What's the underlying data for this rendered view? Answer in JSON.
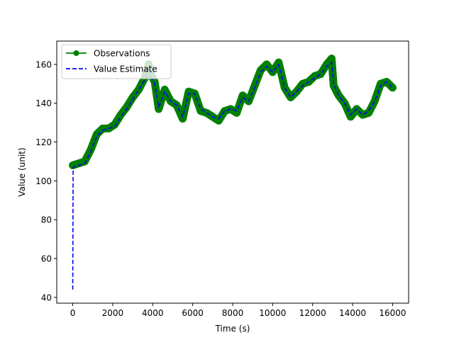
{
  "chart_data": {
    "type": "line",
    "title": "",
    "xlabel": "Time (s)",
    "ylabel": "Value (unit)",
    "xlim": [
      -800,
      16800
    ],
    "ylim": [
      37,
      172
    ],
    "x_ticks": [
      0,
      2000,
      4000,
      6000,
      8000,
      10000,
      12000,
      14000,
      16000
    ],
    "x_tick_labels": [
      "0",
      "2000",
      "4000",
      "6000",
      "8000",
      "10000",
      "12000",
      "14000",
      "16000"
    ],
    "y_ticks": [
      40,
      60,
      80,
      100,
      120,
      140,
      160
    ],
    "y_tick_labels": [
      "40",
      "60",
      "80",
      "100",
      "120",
      "140",
      "160"
    ],
    "grid": false,
    "legend_position": "top-left",
    "series": [
      {
        "name": "Observations",
        "style": "line-with-circle-markers",
        "color": "#008000",
        "x": [
          0,
          300,
          600,
          900,
          1200,
          1500,
          1800,
          2100,
          2400,
          2700,
          3000,
          3300,
          3600,
          3800,
          3900,
          4100,
          4300,
          4600,
          4900,
          5200,
          5500,
          5800,
          6100,
          6400,
          6700,
          7000,
          7300,
          7600,
          7900,
          8200,
          8500,
          8800,
          9100,
          9400,
          9700,
          10000,
          10300,
          10600,
          10900,
          11200,
          11500,
          11800,
          12100,
          12400,
          12700,
          12950,
          13050,
          13300,
          13600,
          13900,
          14200,
          14500,
          14800,
          15100,
          15400,
          15700,
          16000
        ],
        "y": [
          108,
          109,
          110,
          116,
          124,
          127,
          127,
          129,
          134,
          138,
          143,
          147,
          153,
          160,
          155,
          151,
          137,
          147,
          141,
          139,
          132,
          146,
          145,
          136,
          135,
          133,
          131,
          136,
          137,
          135,
          144,
          141,
          149,
          157,
          160,
          156,
          161,
          148,
          143,
          146,
          150,
          151,
          154,
          155,
          160,
          163,
          149,
          144,
          140,
          133,
          137,
          134,
          135,
          141,
          150,
          151,
          148
        ]
      },
      {
        "name": "Value Estimate",
        "style": "dashed-line",
        "color": "#0000ff",
        "x": [
          0,
          20,
          300,
          600,
          900,
          1200,
          1500,
          1800,
          2100,
          2400,
          2700,
          3000,
          3300,
          3600,
          3800,
          3900,
          4100,
          4300,
          4600,
          4900,
          5200,
          5500,
          5800,
          6100,
          6400,
          6700,
          7000,
          7300,
          7600,
          7900,
          8200,
          8500,
          8800,
          9100,
          9400,
          9700,
          10000,
          10300,
          10600,
          10900,
          11200,
          11500,
          11800,
          12100,
          12400,
          12700,
          12950,
          13050,
          13300,
          13600,
          13900,
          14200,
          14500,
          14800,
          15100,
          15400,
          15700,
          16000
        ],
        "y": [
          44,
          107,
          108,
          109,
          115,
          123,
          126,
          127,
          128,
          133,
          137,
          142,
          147,
          152,
          158,
          154,
          150,
          138,
          146,
          141,
          139,
          133,
          145,
          145,
          137,
          135,
          133,
          132,
          136,
          137,
          136,
          143,
          141,
          148,
          156,
          159,
          156,
          160,
          148,
          143,
          146,
          149,
          151,
          153,
          155,
          159,
          161,
          150,
          144,
          140,
          134,
          137,
          134,
          136,
          141,
          149,
          151,
          148
        ]
      }
    ]
  }
}
